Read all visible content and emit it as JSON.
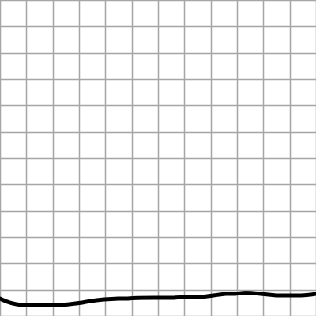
{
  "canvas": {
    "background_color": "#ffffff",
    "grid": {
      "visible": true,
      "line_color": "#a6a6a6",
      "columns": 12,
      "rows": 12
    },
    "stroke": {
      "color": "#000000",
      "description": "freehand-line"
    }
  }
}
